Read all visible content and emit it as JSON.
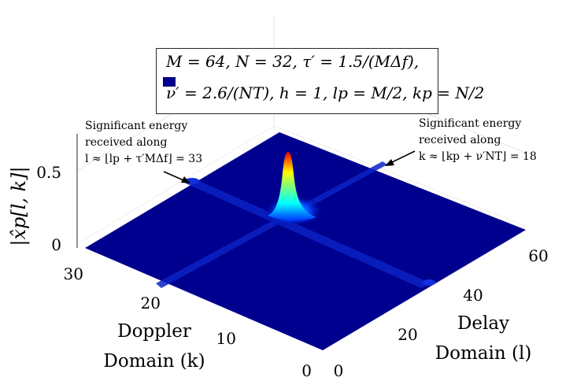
{
  "chart_data": {
    "type": "surface",
    "title": "",
    "zlabel": "|x̂p[l, k]|",
    "xlabel_line1": "Delay",
    "xlabel_line2": "Domain (l)",
    "ylabel_line1": "Doppler",
    "ylabel_line2": "Domain (k)",
    "delay_ticks": [
      "0",
      "20",
      "40",
      "60"
    ],
    "doppler_ticks": [
      "0",
      "10",
      "20",
      "30"
    ],
    "z_ticks": [
      "0",
      "0.5"
    ],
    "delay_range": [
      0,
      63
    ],
    "doppler_range": [
      0,
      31
    ],
    "z_range": [
      0,
      0.6
    ],
    "peak": {
      "l": 33,
      "k": 18,
      "value": 0.6
    },
    "ridges": [
      {
        "along": "l",
        "at": 33,
        "level": 0.05
      },
      {
        "along": "k",
        "at": 18,
        "level": 0.05
      }
    ],
    "legend_line1": "M = 64, N = 32, τ′ = 1.5/(MΔf),",
    "legend_line2": "ν′ = 2.6/(NT), h = 1, lp = M/2, kp = N/2",
    "annotation_left": [
      "Significant energy",
      "received along",
      "l ≈ ⌊lp + τ′MΔf⌋ = 33"
    ],
    "annotation_right": [
      "Significant energy",
      "received along",
      "k ≈ ⌊kp + ν′NT⌋ = 18"
    ],
    "grid": true,
    "colormap": "jet",
    "surface_color": "#00008f"
  }
}
